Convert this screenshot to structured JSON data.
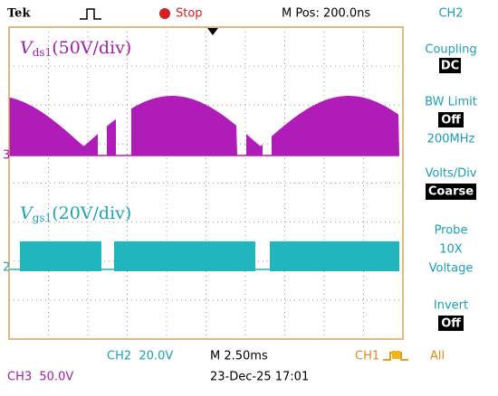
{
  "header": {
    "brand": "Tek",
    "status": "Stop",
    "position": "M Pos: 200.0ns",
    "channel": "CH2"
  },
  "menu": {
    "coupling": "Coupling",
    "coupling_value": "DC",
    "bw_limit": "BW Limit",
    "bw_value": "Off",
    "bw_freq": "200MHz",
    "volts_div": "Volts/Div",
    "volts_value": "Coarse",
    "probe": "Probe",
    "probe_gain": "10X",
    "probe_type": "Voltage",
    "invert": "Invert",
    "invert_value": "Off"
  },
  "traces": [
    {
      "marker": "3",
      "symbol": "V",
      "subscript": "ds1",
      "scale": "(50V/div)"
    },
    {
      "marker": "2",
      "symbol": "V",
      "subscript": "gs1",
      "scale": "(20V/div)"
    }
  ],
  "footer": {
    "ch2": "CH2  20.0V",
    "timebase": "M 2.50ms",
    "trigger_source": "CH1",
    "trigger_mode": "All",
    "ch3": "CH3  50.0V",
    "timestamp": "23-Dec-25 17:01"
  }
}
